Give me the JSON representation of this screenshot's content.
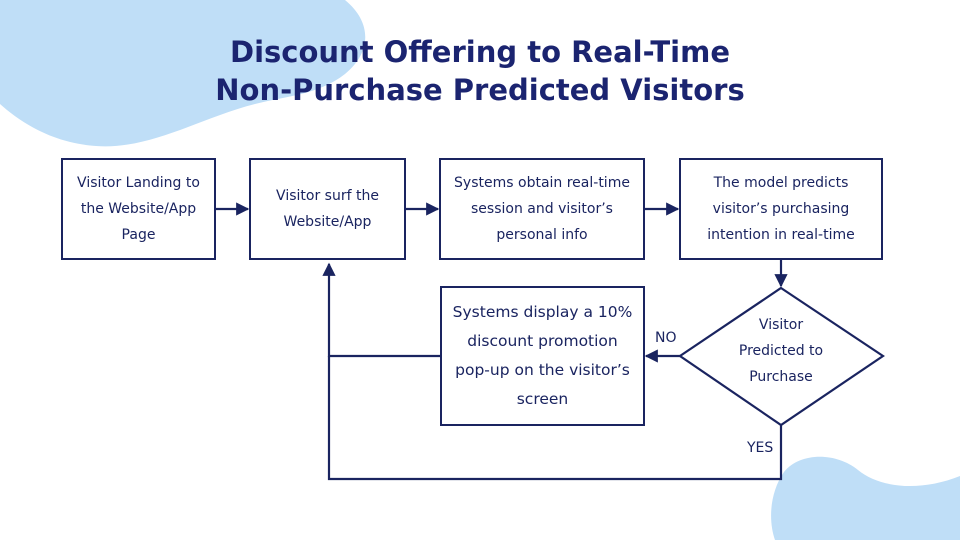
{
  "title": {
    "line1": "Discount Offering to Real-Time",
    "line2": "Non-Purchase Predicted Visitors"
  },
  "nodes": {
    "landing": [
      "Visitor Landing to",
      "the Website/App",
      "Page"
    ],
    "surf": [
      "Visitor surf the",
      "Website/App"
    ],
    "obtain": [
      "Systems obtain real-time",
      "session and visitor’s",
      "personal info"
    ],
    "predict": [
      "The model predicts",
      "visitor’s purchasing",
      "intention in real-time"
    ],
    "decision": [
      "Visitor",
      "Predicted to",
      "Purchase"
    ],
    "discount": [
      "Systems display a 10%",
      "discount promotion",
      "pop-up on the visitor’s",
      "screen"
    ]
  },
  "edge_labels": {
    "no": "NO",
    "yes": "YES"
  },
  "colors": {
    "title": "#1b2470",
    "line": "#1a2460",
    "blob": "#bfdef7"
  }
}
